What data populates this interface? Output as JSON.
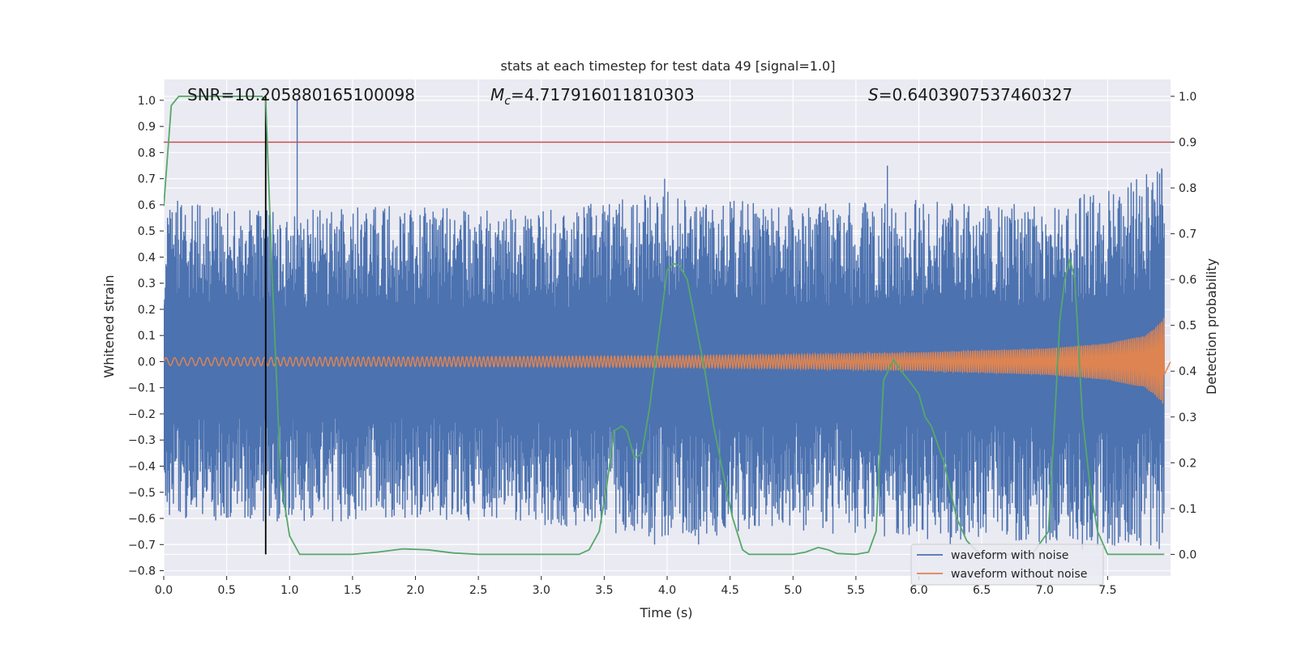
{
  "chart_data": {
    "type": "line",
    "title": "stats at each timestep for test data 49 [signal=1.0]",
    "xlabel": "Time (s)",
    "ylabel": "Whitened strain",
    "y2label": "Detection probability",
    "xlim": [
      0.0,
      8.0
    ],
    "ylim": [
      -0.82,
      1.08
    ],
    "y2lim": [
      -0.047,
      1.037
    ],
    "x_ticks": [
      "0.0",
      "0.5",
      "1.0",
      "1.5",
      "2.0",
      "2.5",
      "3.0",
      "3.5",
      "4.0",
      "4.5",
      "5.0",
      "5.5",
      "6.0",
      "6.5",
      "7.0",
      "7.5"
    ],
    "y_ticks": [
      "1.0",
      "0.9",
      "0.8",
      "0.7",
      "0.6",
      "0.5",
      "0.4",
      "0.3",
      "0.2",
      "0.1",
      "0.0",
      "−0.1",
      "−0.2",
      "−0.3",
      "−0.4",
      "−0.5",
      "−0.6",
      "−0.7",
      "−0.8"
    ],
    "y2_ticks": [
      "1.0",
      "0.9",
      "0.8",
      "0.7",
      "0.6",
      "0.5",
      "0.4",
      "0.3",
      "0.2",
      "0.1",
      "0.0"
    ],
    "annotations": {
      "snr": "SNR=10.205880165100098",
      "mc_symbol": "M",
      "mc_sub": "c",
      "mc_value": "=4.717916011810303",
      "s_symbol": "S",
      "s_value": "=0.6403907537460327"
    },
    "threshold": 0.9,
    "marker_time": 0.81,
    "series": [
      {
        "name": "waveform with noise",
        "color": "#4c72b0",
        "envelope_t": [
          0.0,
          1.0,
          2.0,
          3.0,
          4.0,
          5.0,
          6.0,
          7.0,
          7.95
        ],
        "envelope_upper": [
          0.62,
          0.58,
          0.6,
          0.58,
          0.65,
          0.6,
          0.62,
          0.6,
          0.74
        ],
        "envelope_lower": [
          -0.6,
          -0.62,
          -0.6,
          -0.63,
          -0.68,
          -0.65,
          -0.68,
          -0.7,
          -0.72
        ],
        "spikes": [
          {
            "t": 1.06,
            "v": 1.0
          },
          {
            "t": 3.98,
            "v": 0.7
          },
          {
            "t": 5.75,
            "v": 0.75
          },
          {
            "t": 7.93,
            "v": 0.74
          },
          {
            "t": 3.9,
            "v": -0.7
          },
          {
            "t": 4.25,
            "v": -0.7
          },
          {
            "t": 6.25,
            "v": -0.7
          },
          {
            "t": 7.3,
            "v": -0.72
          }
        ]
      },
      {
        "name": "waveform without noise",
        "color": "#dd8452",
        "amp_t": [
          0.0,
          2.0,
          4.0,
          5.0,
          6.0,
          7.0,
          7.5,
          7.8,
          7.9,
          7.95
        ],
        "amp": [
          0.015,
          0.018,
          0.022,
          0.027,
          0.035,
          0.05,
          0.07,
          0.1,
          0.14,
          0.17
        ]
      },
      {
        "name": "detection probability",
        "color": "#55a868",
        "axis": "right",
        "t": [
          0.0,
          0.06,
          0.12,
          0.2,
          0.5,
          0.78,
          0.81,
          0.86,
          0.93,
          1.0,
          1.08,
          1.2,
          1.5,
          1.7,
          1.9,
          2.1,
          2.3,
          2.5,
          3.0,
          3.3,
          3.38,
          3.46,
          3.52,
          3.58,
          3.64,
          3.68,
          3.74,
          3.8,
          3.86,
          3.93,
          4.0,
          4.05,
          4.1,
          4.16,
          4.23,
          4.3,
          4.37,
          4.45,
          4.52,
          4.6,
          4.65,
          4.8,
          5.0,
          5.1,
          5.2,
          5.28,
          5.35,
          5.5,
          5.6,
          5.66,
          5.72,
          5.8,
          5.86,
          5.92,
          6.0,
          6.05,
          6.1,
          6.2,
          6.3,
          6.38,
          6.45,
          6.5,
          6.9,
          7.03,
          7.08,
          7.12,
          7.16,
          7.2,
          7.24,
          7.3,
          7.36,
          7.42,
          7.5,
          7.95
        ],
        "values": [
          0.76,
          0.98,
          1.0,
          1.0,
          1.0,
          1.0,
          0.99,
          0.62,
          0.16,
          0.04,
          0.0,
          0.0,
          0.0,
          0.005,
          0.012,
          0.01,
          0.003,
          0.0,
          0.0,
          0.0,
          0.01,
          0.05,
          0.15,
          0.27,
          0.28,
          0.27,
          0.21,
          0.22,
          0.32,
          0.47,
          0.62,
          0.635,
          0.63,
          0.6,
          0.5,
          0.4,
          0.28,
          0.17,
          0.08,
          0.01,
          0.0,
          0.0,
          0.0,
          0.005,
          0.015,
          0.01,
          0.002,
          0.0,
          0.005,
          0.05,
          0.38,
          0.425,
          0.4,
          0.38,
          0.35,
          0.3,
          0.28,
          0.2,
          0.08,
          0.03,
          0.01,
          0.0,
          0.0,
          0.05,
          0.3,
          0.51,
          0.6,
          0.645,
          0.6,
          0.3,
          0.15,
          0.05,
          0.0,
          0.0
        ]
      }
    ],
    "legend": {
      "placement": "lower-right",
      "entries": [
        "waveform with noise",
        "waveform without noise"
      ]
    },
    "grid": true
  }
}
